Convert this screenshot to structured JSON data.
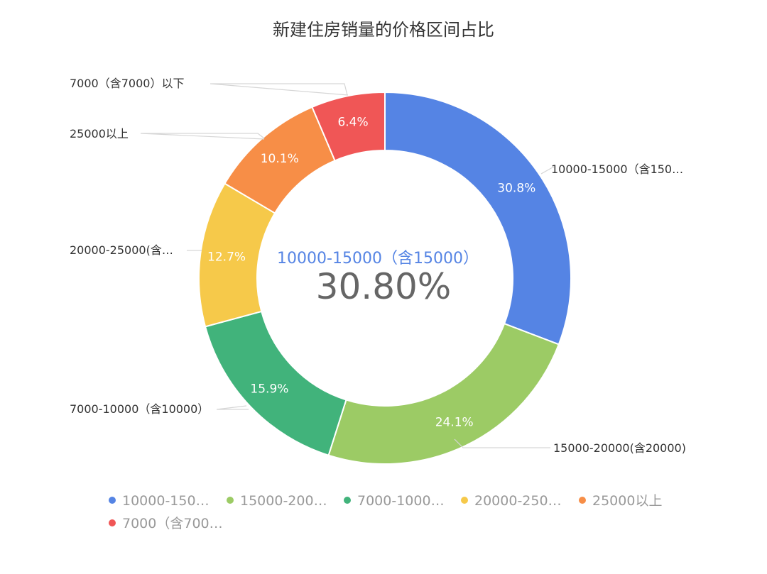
{
  "chart_data": {
    "type": "pie",
    "variant": "donut",
    "title": "新建住房销量的价格区间占比",
    "slices": [
      {
        "name": "10000-15000（含15000）",
        "value": 30.8,
        "label": "30.8%",
        "outer_label": "10000-15000（含150…",
        "legend_label": "10000-150…",
        "color": "#5584e4"
      },
      {
        "name": "15000-20000(含20000)",
        "value": 24.1,
        "label": "24.1%",
        "outer_label": "15000-20000(含20000)",
        "legend_label": "15000-200…",
        "color": "#9ccb65"
      },
      {
        "name": "7000-10000（含10000）",
        "value": 15.9,
        "label": "15.9%",
        "outer_label": "7000-10000（含10000）",
        "legend_label": "7000-1000…",
        "color": "#41b37b"
      },
      {
        "name": "20000-25000(含…",
        "value": 12.7,
        "label": "12.7%",
        "outer_label": "20000-25000(含…",
        "legend_label": "20000-250…",
        "color": "#f6c94a"
      },
      {
        "name": "25000以上",
        "value": 10.1,
        "label": "10.1%",
        "outer_label": "25000以上",
        "legend_label": "25000以上",
        "color": "#f78e47"
      },
      {
        "name": "7000（含7000）以下",
        "value": 6.4,
        "label": "6.4%",
        "outer_label": "7000（含7000）以下",
        "legend_label": "7000（含700…",
        "color": "#f05656"
      }
    ],
    "center": {
      "name": "10000-15000（含15000）",
      "value": "30.80%"
    },
    "legend_position": "bottom"
  }
}
